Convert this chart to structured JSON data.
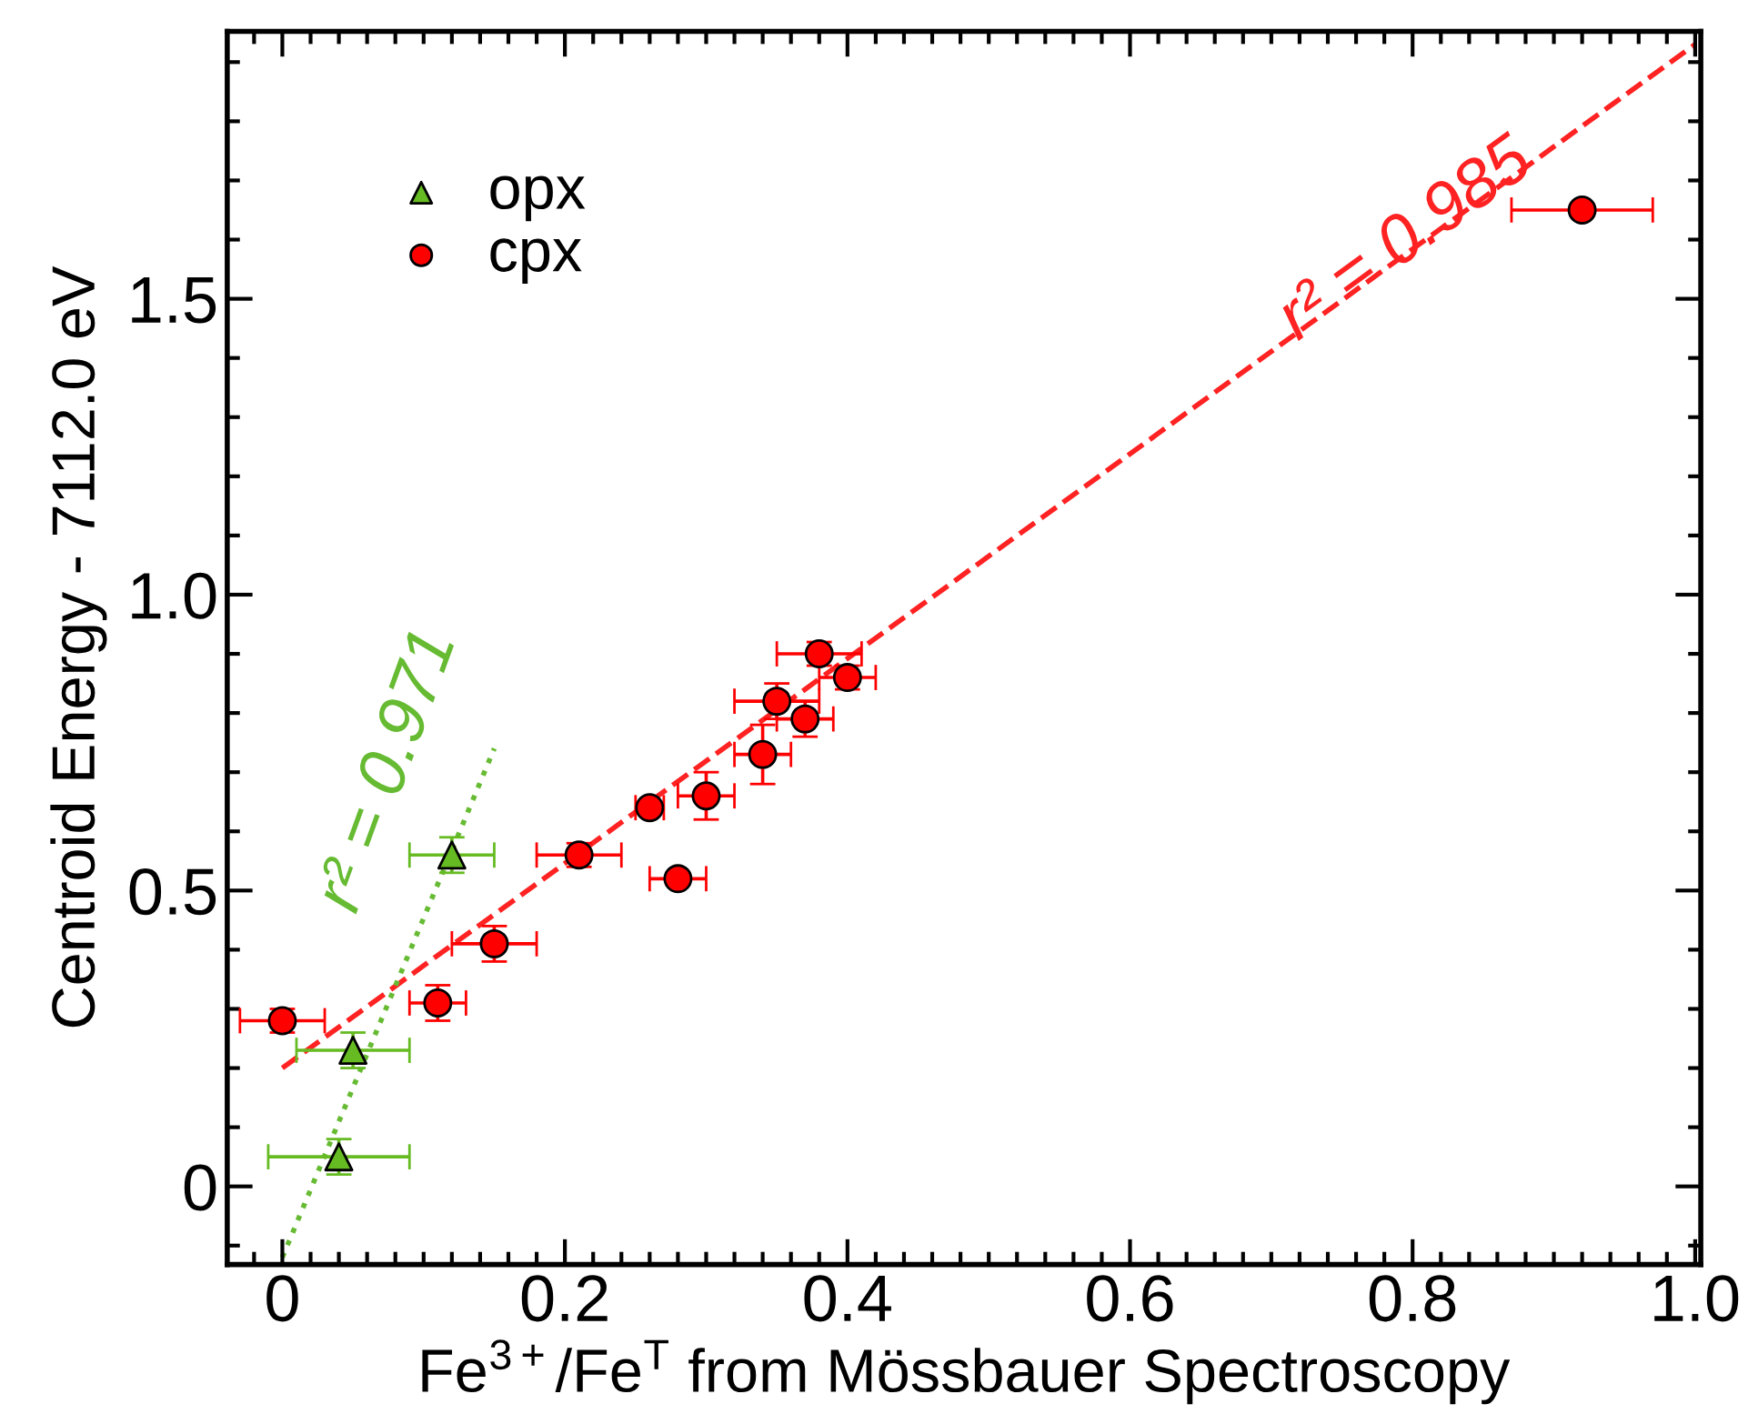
{
  "chart_data": {
    "type": "scatter",
    "xlabel": "Fe$^{3+}$/Fe$^{T}$ from Mössbauer Spectroscopy",
    "ylabel": "Centroid Energy - 7112.0 eV",
    "xlim": [
      -0.039,
      1.004
    ],
    "ylim": [
      -0.132,
      1.952
    ],
    "xticks": [
      0,
      0.2,
      0.4,
      0.6,
      0.8,
      {
        "value": 1.0,
        "label": "1.0"
      }
    ],
    "yticks": [
      0,
      0.5,
      {
        "value": 1.0,
        "label": "1.0"
      },
      1.5
    ],
    "grid": false,
    "legend": "top left",
    "series": [
      {
        "name": "opx",
        "marker": "triangle",
        "color": "#66bb22",
        "x": [
          0.04,
          0.05,
          0.12
        ],
        "values": [
          0.05,
          0.23,
          0.56
        ],
        "errors": [
          0.03,
          0.03,
          0.03
        ],
        "xerrors": [
          0.05,
          0.04,
          0.03
        ]
      },
      {
        "name": "cpx",
        "marker": "circle",
        "color": "#ff0000",
        "x": [
          0,
          0.11,
          0.15,
          0.21,
          0.26,
          0.28,
          0.3,
          0.34,
          0.35,
          0.37,
          0.38,
          0.4,
          0.92
        ],
        "values": [
          0.28,
          0.31,
          0.41,
          0.56,
          0.64,
          0.52,
          0.66,
          0.73,
          0.82,
          0.79,
          0.9,
          0.86,
          1.65
        ],
        "errors": [
          0.02,
          0.03,
          0.03,
          0.02,
          0.01,
          0.01,
          0.04,
          0.05,
          0.03,
          0.03,
          0.02,
          0.02,
          0.01
        ],
        "xerrors": [
          0.03,
          0.02,
          0.03,
          0.03,
          0.01,
          0.02,
          0.02,
          0.02,
          0.03,
          0.02,
          0.03,
          0.02,
          0.05
        ]
      },
      {
        "type": "line",
        "line_style": "dashed",
        "color": "#ff2222",
        "x": [
          0,
          1.0
        ],
        "values": [
          0.2,
          1.93
        ]
      },
      {
        "type": "line",
        "line_style": "dotted",
        "color": "#66bb33",
        "x": [
          0,
          0.15
        ],
        "values": [
          -0.12,
          0.74
        ]
      }
    ],
    "annotations": [
      "r² = 0.985",
      "r² = 0.971"
    ]
  }
}
